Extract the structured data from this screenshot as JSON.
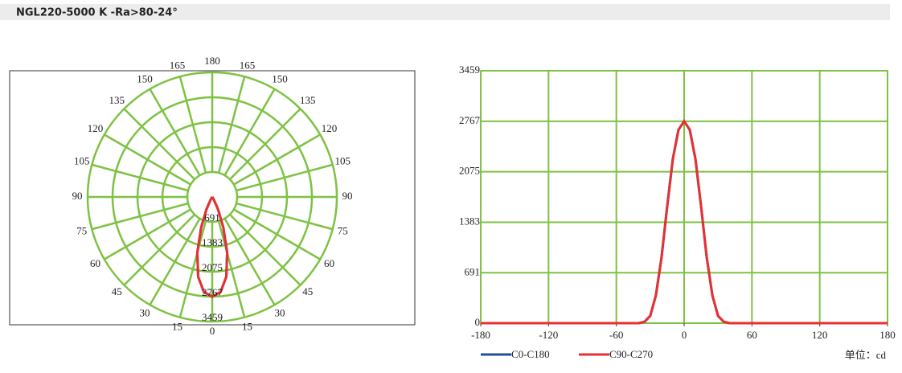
{
  "header": {
    "title": "NGL220-5000 K -Ra>80-24°"
  },
  "chart_data": [
    {
      "type": "polar",
      "angle_ticks": [
        0,
        15,
        30,
        45,
        60,
        75,
        90,
        105,
        120,
        135,
        150,
        165,
        180
      ],
      "rlim": [
        0,
        3459
      ],
      "rticks": [
        691,
        1383,
        2075,
        2767,
        3459
      ],
      "grid_color": "#7dc242",
      "theta": [
        -180,
        -40,
        -35,
        -30,
        -25,
        -20,
        -15,
        -10,
        -5,
        0,
        5,
        10,
        15,
        20,
        25,
        30,
        35,
        40,
        180
      ],
      "series": [
        {
          "color": "#1f4e9e",
          "values": [
            0,
            0,
            20,
            100,
            380,
            900,
            1600,
            2250,
            2650,
            2767,
            2650,
            2250,
            1600,
            900,
            380,
            100,
            20,
            0,
            0
          ]
        },
        {
          "color": "#e83030",
          "values": [
            0,
            0,
            20,
            100,
            380,
            900,
            1600,
            2250,
            2650,
            2767,
            2650,
            2250,
            1600,
            900,
            380,
            100,
            20,
            0,
            0
          ]
        }
      ]
    },
    {
      "type": "line",
      "x": [
        -180,
        -40,
        -35,
        -30,
        -25,
        -20,
        -15,
        -10,
        -5,
        0,
        5,
        10,
        15,
        20,
        25,
        30,
        35,
        40,
        180
      ],
      "xlim": [
        -180,
        180
      ],
      "xticks": [
        -180,
        -120,
        -60,
        0,
        60,
        120,
        180
      ],
      "ylim": [
        0,
        3459
      ],
      "yticks": [
        0,
        691,
        1383,
        2075,
        2767,
        3459
      ],
      "grid": true,
      "grid_color": "#7dc242",
      "series": [
        {
          "name": "C0-C180",
          "color": "#1f4e9e",
          "values": [
            0,
            0,
            20,
            100,
            380,
            900,
            1600,
            2250,
            2650,
            2767,
            2650,
            2250,
            1600,
            900,
            380,
            100,
            20,
            0,
            0
          ]
        },
        {
          "name": "C90-C270",
          "color": "#e83030",
          "values": [
            0,
            0,
            20,
            100,
            380,
            900,
            1600,
            2250,
            2650,
            2767,
            2650,
            2250,
            1600,
            900,
            380,
            100,
            20,
            0,
            0
          ]
        }
      ],
      "unit_label": "单位：cd"
    }
  ]
}
